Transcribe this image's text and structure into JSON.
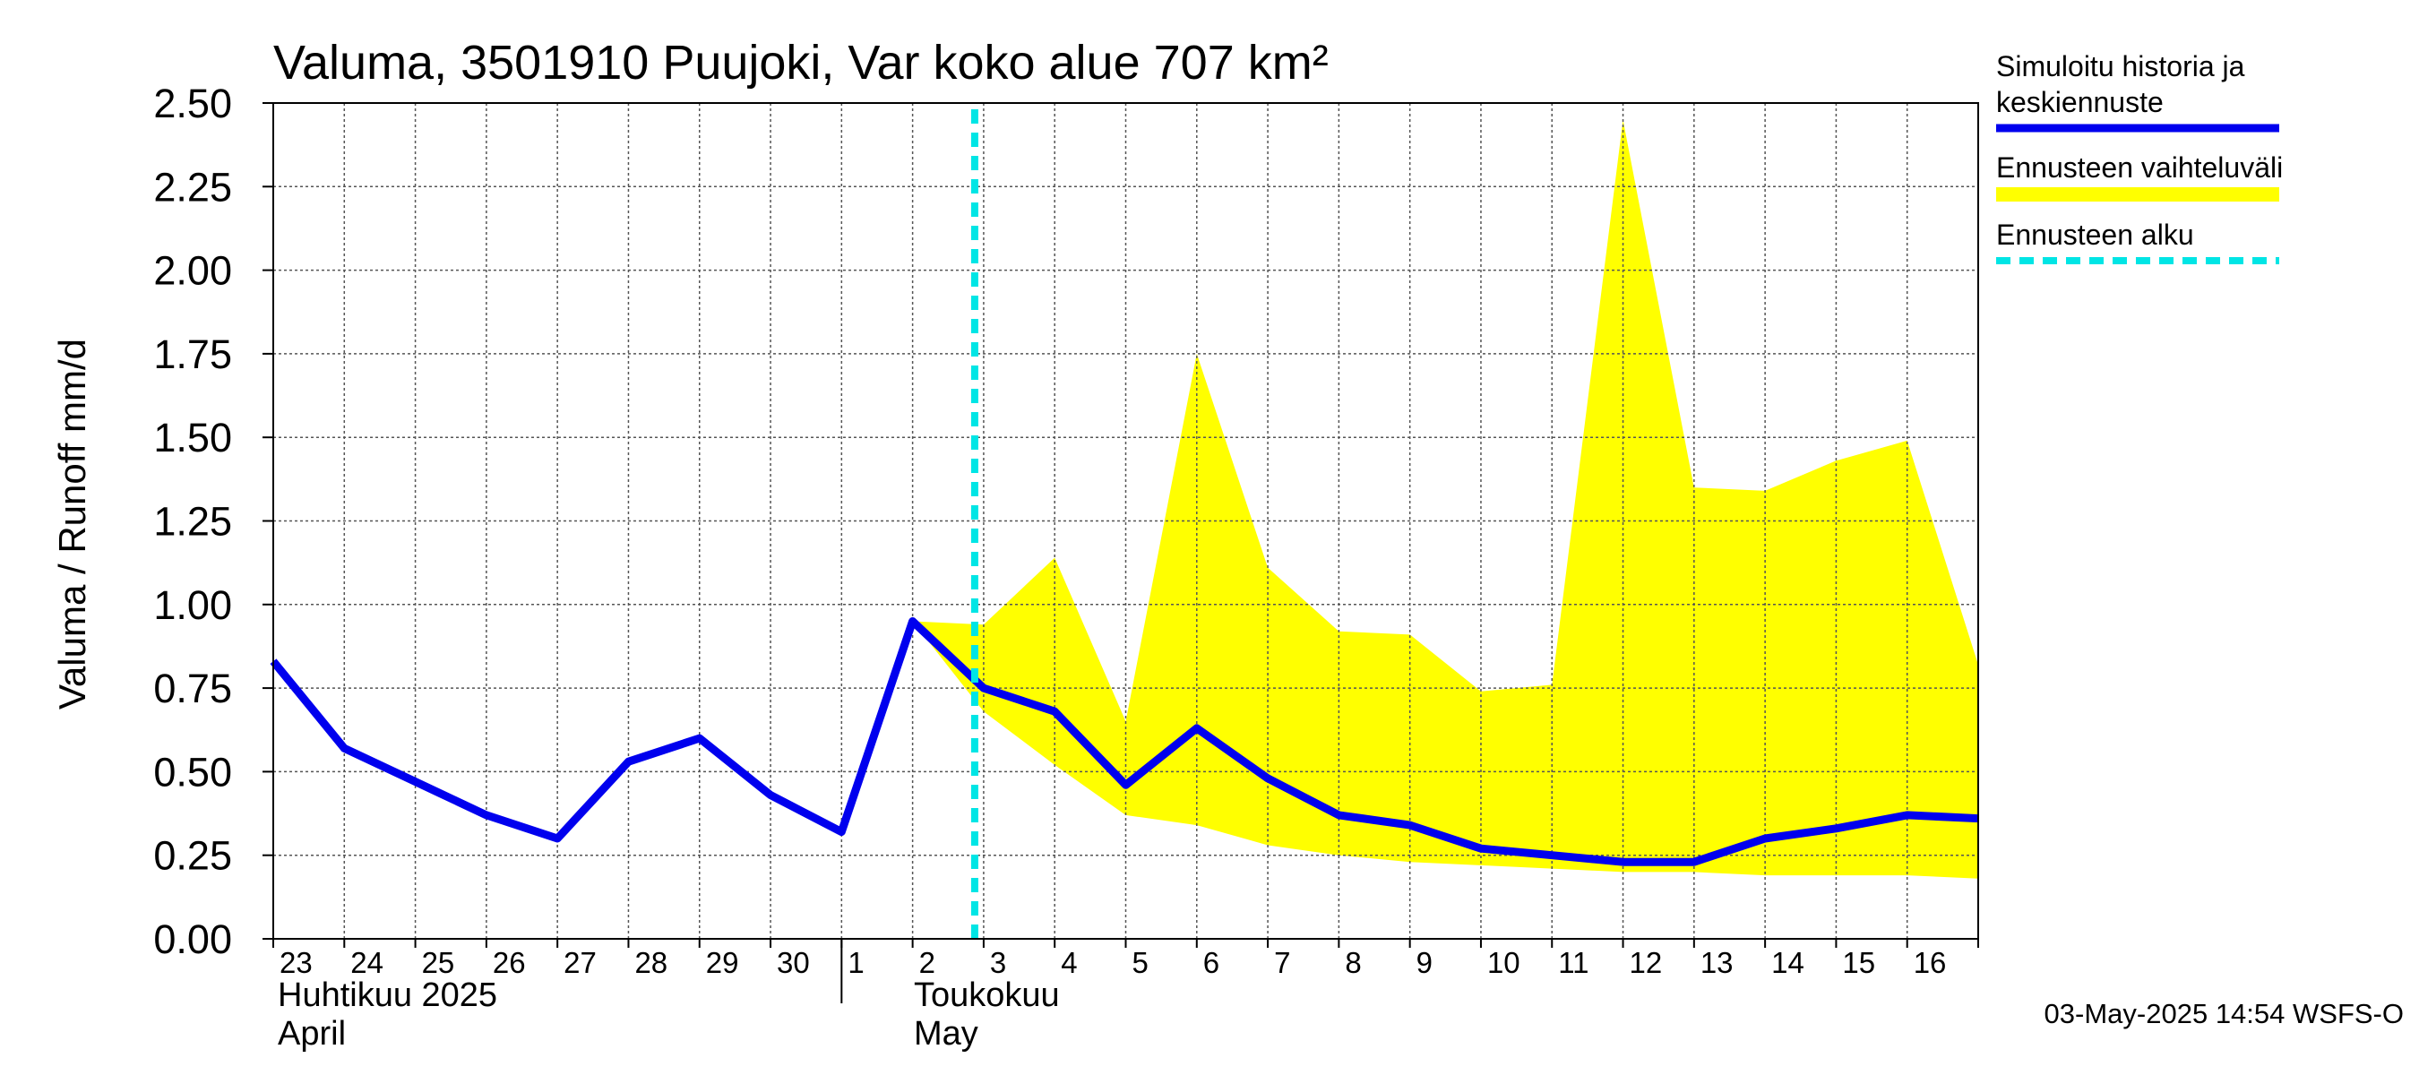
{
  "chart_data": {
    "type": "line",
    "title": "Valuma, 3501910 Puujoki, Var koko alue 707 km²",
    "ylabel": "Valuma / Runoff     mm/d",
    "ylim": [
      0,
      2.5
    ],
    "ytick_labels": [
      "0.00",
      "0.25",
      "0.50",
      "0.75",
      "1.00",
      "1.25",
      "1.50",
      "1.75",
      "2.00",
      "2.25",
      "2.50"
    ],
    "x_start": "2025-04-23",
    "x_end": "2025-05-17",
    "x_tick_labels": [
      "23",
      "24",
      "25",
      "26",
      "27",
      "28",
      "29",
      "30",
      "1",
      "2",
      "3",
      "4",
      "5",
      "6",
      "7",
      "8",
      "9",
      "10",
      "11",
      "12",
      "13",
      "14",
      "15",
      "16"
    ],
    "month_labels": [
      {
        "fi": "Huhtikuu  2025",
        "en": "April"
      },
      {
        "fi": "Toukokuu",
        "en": "May"
      }
    ],
    "forecast_start": "2025-05-03",
    "series": [
      {
        "name": "Simuloitu historia ja keskiennuste",
        "color": "#0000ee",
        "points": [
          [
            "2025-04-23",
            0.83
          ],
          [
            "2025-04-24",
            0.57
          ],
          [
            "2025-04-25",
            0.47
          ],
          [
            "2025-04-26",
            0.37
          ],
          [
            "2025-04-27",
            0.3
          ],
          [
            "2025-04-28",
            0.53
          ],
          [
            "2025-04-29",
            0.6
          ],
          [
            "2025-04-30",
            0.43
          ],
          [
            "2025-05-01",
            0.32
          ],
          [
            "2025-05-02",
            0.95
          ],
          [
            "2025-05-03",
            0.75
          ],
          [
            "2025-05-04",
            0.68
          ],
          [
            "2025-05-05",
            0.46
          ],
          [
            "2025-05-06",
            0.63
          ],
          [
            "2025-05-07",
            0.48
          ],
          [
            "2025-05-08",
            0.37
          ],
          [
            "2025-05-09",
            0.34
          ],
          [
            "2025-05-10",
            0.27
          ],
          [
            "2025-05-11",
            0.25
          ],
          [
            "2025-05-12",
            0.23
          ],
          [
            "2025-05-13",
            0.23
          ],
          [
            "2025-05-14",
            0.3
          ],
          [
            "2025-05-15",
            0.33
          ],
          [
            "2025-05-16",
            0.37
          ],
          [
            "2025-05-17",
            0.36
          ]
        ]
      },
      {
        "name": "Ennusteen vaihteluväli",
        "color": "#ffff00",
        "band": [
          [
            "2025-05-02",
            0.95,
            0.95
          ],
          [
            "2025-05-03",
            0.68,
            0.94
          ],
          [
            "2025-05-04",
            0.52,
            1.14
          ],
          [
            "2025-05-05",
            0.37,
            0.65
          ],
          [
            "2025-05-06",
            0.34,
            1.75
          ],
          [
            "2025-05-07",
            0.28,
            1.11
          ],
          [
            "2025-05-08",
            0.25,
            0.92
          ],
          [
            "2025-05-09",
            0.23,
            0.91
          ],
          [
            "2025-05-10",
            0.22,
            0.74
          ],
          [
            "2025-05-11",
            0.21,
            0.76
          ],
          [
            "2025-05-12",
            0.2,
            2.45
          ],
          [
            "2025-05-13",
            0.2,
            1.35
          ],
          [
            "2025-05-14",
            0.19,
            1.34
          ],
          [
            "2025-05-15",
            0.19,
            1.43
          ],
          [
            "2025-05-16",
            0.19,
            1.49
          ],
          [
            "2025-05-17",
            0.18,
            0.82
          ]
        ]
      }
    ],
    "legend": [
      {
        "label_line1": "Simuloitu historia ja",
        "label_line2": "keskiennuste",
        "style": "line",
        "color": "#0000ee"
      },
      {
        "label_line1": "Ennusteen vaihteluväli",
        "label_line2": "",
        "style": "band",
        "color": "#ffff00"
      },
      {
        "label_line1": "Ennusteen alku",
        "label_line2": "",
        "style": "dashed",
        "color": "#00e5e5"
      }
    ],
    "grid": true,
    "legend_position": "right"
  },
  "footer": "03-May-2025 14:54 WSFS-O"
}
